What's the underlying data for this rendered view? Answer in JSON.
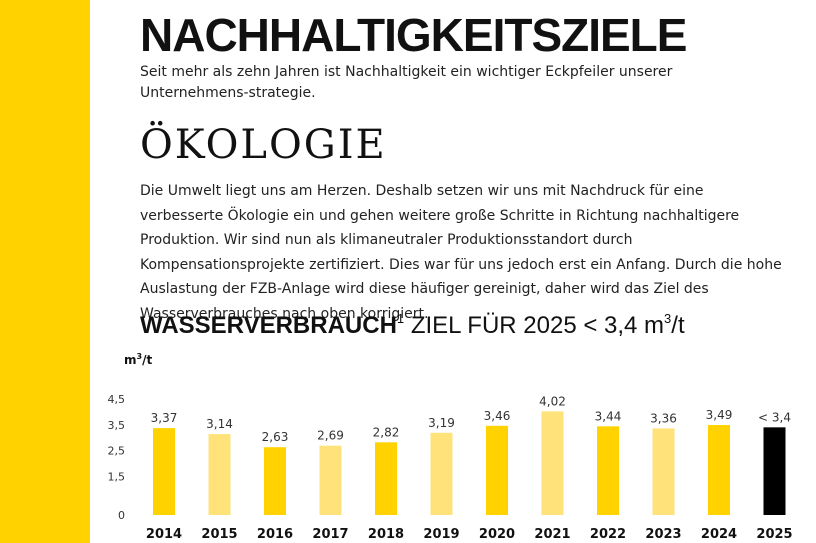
{
  "page": {
    "title": "NACHHALTIGKEITSZIELE",
    "intro": "Seit mehr als zehn Jahren ist Nachhaltigkeit ein wichtiger Eckpfeiler unserer Unternehmens-strategie.",
    "section_title": "ÖKOLOGIE",
    "body": "Die Umwelt liegt uns am Herzen. Deshalb setzen wir uns mit Nachdruck für eine verbesserte Ökologie ein und gehen weitere große Schritte in Richtung nachhaltigere Produktion. Wir sind nun als klimaneutraler Produktionsstandort durch Kompensationsprojekte zertifiziert. Dies war für uns jedoch erst ein Anfang. Durch die hohe Auslastung der FZB-Anlage wird diese häufiger gereinigt, daher wird das Ziel des Wasserverbrauches nach oben korrigiert.",
    "chart_heading_bold": "WASSERVERBRAUCH",
    "chart_heading_sup": "1",
    "chart_heading_rest": " ZIEL FÜR 2025 < 3,4 m",
    "chart_heading_unit_sup": "3",
    "chart_heading_tail": "/t",
    "unit_label_main": "m",
    "unit_label_sup": "3",
    "unit_label_tail": "/t"
  },
  "colors": {
    "sidebar": "#FFD200",
    "bar_strong": "#FFD200",
    "bar_light": "#FFE37A",
    "bar_target": "#000000"
  },
  "chart_data": {
    "type": "bar",
    "title": "WASSERVERBRAUCH¹ ZIEL FÜR 2025 < 3,4 m³/t",
    "ylabel": "m³/t",
    "xlabel": "",
    "ylim": [
      0,
      4.5
    ],
    "yticks": [
      "0",
      "1,5",
      "2,5",
      "3,5",
      "4,5"
    ],
    "ytick_values": [
      0,
      1.5,
      2.5,
      3.5,
      4.5
    ],
    "categories": [
      "2014",
      "2015",
      "2016",
      "2017",
      "2018",
      "2019",
      "2020",
      "2021",
      "2022",
      "2023",
      "2024",
      "2025"
    ],
    "values": [
      3.37,
      3.14,
      2.63,
      2.69,
      2.82,
      3.19,
      3.46,
      4.02,
      3.44,
      3.36,
      3.49,
      3.4
    ],
    "value_labels": [
      "3,37",
      "3,14",
      "2,63",
      "2,69",
      "2,82",
      "3,19",
      "3,46",
      "4,02",
      "3,44",
      "3,36",
      "3,49",
      "< 3,4"
    ],
    "bar_styles": [
      "strong",
      "light",
      "strong",
      "light",
      "strong",
      "light",
      "strong",
      "light",
      "strong",
      "light",
      "strong",
      "target"
    ],
    "grid": false,
    "legend": "none"
  }
}
